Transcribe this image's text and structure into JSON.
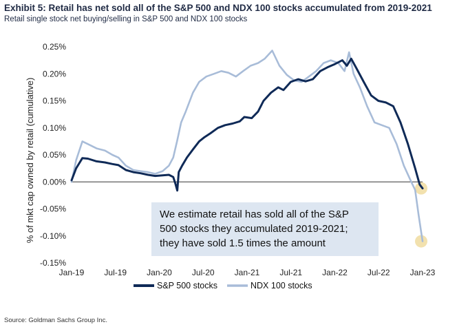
{
  "header": {
    "title": "Exhibit 5: Retail has net sold all of the S&P 500 and NDX 100 stocks accumulated from 2019-2021",
    "subtitle": "Retail single stock net buying/selling in S&P 500 and NDX 100 stocks"
  },
  "footer": {
    "source": "Source: Goldman Sachs Group Inc."
  },
  "chart_data": {
    "type": "line",
    "title": "Exhibit 5: Retail has net sold all of the S&P 500 and NDX 100 stocks accumulated from 2019-2021",
    "subtitle": "Retail single stock net buying/selling in S&P 500 and NDX 100 stocks",
    "ylabel": "% of mkt cap owned by retail (cumulative)",
    "xlabel": "",
    "xlim": [
      "2019-01-01",
      "2023-01-01"
    ],
    "ylim": [
      -0.15,
      0.25
    ],
    "x_ticks": [
      "Jan-19",
      "Jul-19",
      "Jan-20",
      "Jul-20",
      "Jan-21",
      "Jul-21",
      "Jan-22",
      "Jul-22",
      "Jan-23"
    ],
    "y_ticks": [
      "0.25%",
      "0.20%",
      "0.15%",
      "0.10%",
      "0.05%",
      "0.00%",
      "-0.05%",
      "-0.10%",
      "-0.15%"
    ],
    "y_tick_values": [
      0.25,
      0.2,
      0.15,
      0.1,
      0.05,
      0.0,
      -0.05,
      -0.1,
      -0.15
    ],
    "grid": false,
    "legend_position": "bottom",
    "series": [
      {
        "name": "S&P 500 stocks",
        "color": "#0f2a57",
        "points": [
          [
            "2019-01-01",
            0.003
          ],
          [
            "2019-01-20",
            0.025
          ],
          [
            "2019-02-15",
            0.044
          ],
          [
            "2019-03-10",
            0.043
          ],
          [
            "2019-04-15",
            0.038
          ],
          [
            "2019-05-20",
            0.036
          ],
          [
            "2019-06-20",
            0.033
          ],
          [
            "2019-07-15",
            0.031
          ],
          [
            "2019-08-15",
            0.022
          ],
          [
            "2019-09-15",
            0.018
          ],
          [
            "2019-10-15",
            0.016
          ],
          [
            "2019-11-15",
            0.013
          ],
          [
            "2019-12-15",
            0.011
          ],
          [
            "2020-01-15",
            0.012
          ],
          [
            "2020-02-10",
            0.013
          ],
          [
            "2020-02-28",
            0.009
          ],
          [
            "2020-03-08",
            -0.003
          ],
          [
            "2020-03-16",
            -0.016
          ],
          [
            "2020-03-22",
            0.018
          ],
          [
            "2020-04-05",
            0.03
          ],
          [
            "2020-04-25",
            0.045
          ],
          [
            "2020-05-20",
            0.06
          ],
          [
            "2020-06-15",
            0.075
          ],
          [
            "2020-07-05",
            0.082
          ],
          [
            "2020-08-01",
            0.09
          ],
          [
            "2020-09-01",
            0.1
          ],
          [
            "2020-10-01",
            0.105
          ],
          [
            "2020-11-01",
            0.108
          ],
          [
            "2020-12-01",
            0.112
          ],
          [
            "2020-12-20",
            0.12
          ],
          [
            "2021-01-20",
            0.118
          ],
          [
            "2021-02-15",
            0.13
          ],
          [
            "2021-03-10",
            0.15
          ],
          [
            "2021-04-10",
            0.165
          ],
          [
            "2021-05-10",
            0.175
          ],
          [
            "2021-06-01",
            0.17
          ],
          [
            "2021-07-01",
            0.185
          ],
          [
            "2021-08-01",
            0.19
          ],
          [
            "2021-09-01",
            0.186
          ],
          [
            "2021-10-01",
            0.19
          ],
          [
            "2021-11-01",
            0.205
          ],
          [
            "2021-12-01",
            0.212
          ],
          [
            "2022-01-01",
            0.218
          ],
          [
            "2022-02-01",
            0.225
          ],
          [
            "2022-02-20",
            0.215
          ],
          [
            "2022-03-10",
            0.228
          ],
          [
            "2022-04-01",
            0.21
          ],
          [
            "2022-05-01",
            0.185
          ],
          [
            "2022-06-01",
            0.16
          ],
          [
            "2022-07-01",
            0.15
          ],
          [
            "2022-08-01",
            0.147
          ],
          [
            "2022-09-01",
            0.14
          ],
          [
            "2022-10-01",
            0.11
          ],
          [
            "2022-11-01",
            0.07
          ],
          [
            "2022-12-01",
            0.025
          ],
          [
            "2022-12-20",
            -0.005
          ],
          [
            "2023-01-01",
            -0.012
          ]
        ]
      },
      {
        "name": "NDX 100 stocks",
        "color": "#a8bcd8",
        "points": [
          [
            "2019-01-01",
            0.0
          ],
          [
            "2019-01-20",
            0.04
          ],
          [
            "2019-02-15",
            0.075
          ],
          [
            "2019-03-10",
            0.07
          ],
          [
            "2019-04-15",
            0.062
          ],
          [
            "2019-05-20",
            0.058
          ],
          [
            "2019-06-20",
            0.05
          ],
          [
            "2019-07-15",
            0.045
          ],
          [
            "2019-08-15",
            0.03
          ],
          [
            "2019-09-15",
            0.022
          ],
          [
            "2019-10-15",
            0.02
          ],
          [
            "2019-11-15",
            0.018
          ],
          [
            "2019-12-15",
            0.015
          ],
          [
            "2020-01-15",
            0.02
          ],
          [
            "2020-02-10",
            0.03
          ],
          [
            "2020-02-28",
            0.045
          ],
          [
            "2020-03-15",
            0.075
          ],
          [
            "2020-04-01",
            0.11
          ],
          [
            "2020-04-20",
            0.13
          ],
          [
            "2020-05-20",
            0.165
          ],
          [
            "2020-06-15",
            0.185
          ],
          [
            "2020-07-15",
            0.195
          ],
          [
            "2020-08-15",
            0.2
          ],
          [
            "2020-09-15",
            0.205
          ],
          [
            "2020-10-15",
            0.202
          ],
          [
            "2020-11-15",
            0.195
          ],
          [
            "2020-12-15",
            0.205
          ],
          [
            "2021-01-15",
            0.215
          ],
          [
            "2021-02-15",
            0.22
          ],
          [
            "2021-03-15",
            0.228
          ],
          [
            "2021-04-15",
            0.243
          ],
          [
            "2021-05-15",
            0.215
          ],
          [
            "2021-06-15",
            0.198
          ],
          [
            "2021-07-15",
            0.188
          ],
          [
            "2021-08-15",
            0.185
          ],
          [
            "2021-09-15",
            0.195
          ],
          [
            "2021-10-15",
            0.205
          ],
          [
            "2021-11-15",
            0.22
          ],
          [
            "2021-12-15",
            0.225
          ],
          [
            "2022-01-15",
            0.22
          ],
          [
            "2022-02-10",
            0.205
          ],
          [
            "2022-03-01",
            0.24
          ],
          [
            "2022-03-20",
            0.2
          ],
          [
            "2022-04-15",
            0.175
          ],
          [
            "2022-05-15",
            0.14
          ],
          [
            "2022-06-15",
            0.11
          ],
          [
            "2022-07-15",
            0.105
          ],
          [
            "2022-08-15",
            0.1
          ],
          [
            "2022-09-15",
            0.07
          ],
          [
            "2022-10-15",
            0.03
          ],
          [
            "2022-11-15",
            0.0
          ],
          [
            "2022-12-01",
            -0.015
          ],
          [
            "2022-12-15",
            -0.06
          ],
          [
            "2023-01-01",
            -0.11
          ]
        ]
      }
    ],
    "annotation": {
      "text_lines": [
        "We estimate retail has sold all of the S&P",
        "500 stocks they accumulated 2019-2021;",
        "they have sold 1.5 times the amount"
      ],
      "background": "#dde6f1"
    },
    "highlight_color": "#f0dca0",
    "highlights": [
      {
        "series": "S&P 500 stocks",
        "date": "2023-01-01",
        "value": -0.012
      },
      {
        "series": "NDX 100 stocks",
        "date": "2023-01-01",
        "value": -0.11
      }
    ]
  }
}
